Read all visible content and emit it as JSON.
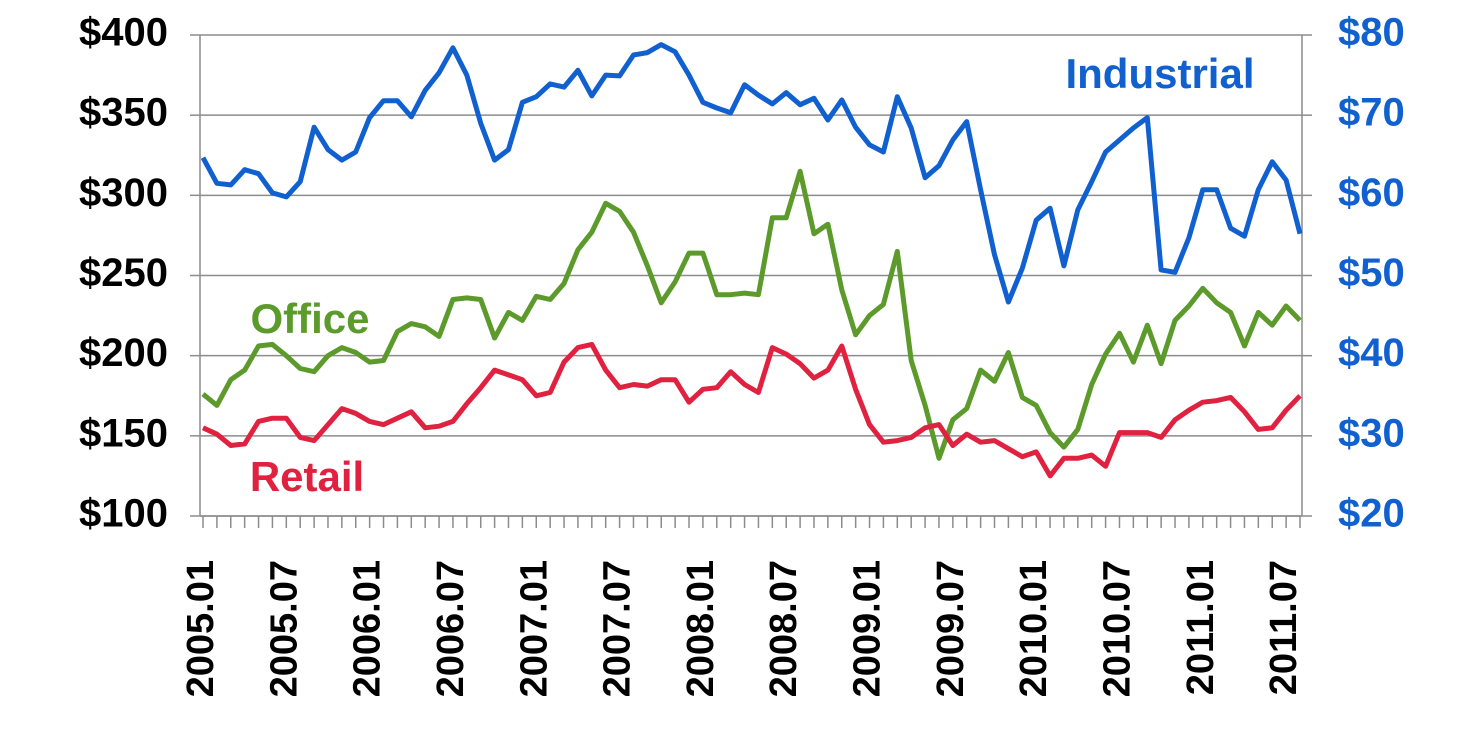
{
  "chart_data": {
    "type": "line",
    "categories": [
      "2005.01",
      null,
      null,
      null,
      null,
      null,
      "2005.07",
      null,
      null,
      null,
      null,
      null,
      "2006.01",
      null,
      null,
      null,
      null,
      null,
      "2006.07",
      null,
      null,
      null,
      null,
      null,
      "2007.01",
      null,
      null,
      null,
      null,
      null,
      "2007.07",
      null,
      null,
      null,
      null,
      null,
      "2008.01",
      null,
      null,
      null,
      null,
      null,
      "2008.07",
      null,
      null,
      null,
      null,
      null,
      "2009.01",
      null,
      null,
      null,
      null,
      null,
      "2009.07",
      null,
      null,
      null,
      null,
      null,
      "2010.01",
      null,
      null,
      null,
      null,
      null,
      "2010.07",
      null,
      null,
      null,
      null,
      null,
      "2011.01",
      null,
      null,
      null,
      null,
      null,
      "2011.07",
      null
    ],
    "series": [
      {
        "name": "Industrial",
        "color": "#1060d0",
        "axis": "y2",
        "values": [
          64.7,
          61.5,
          61.3,
          63.2,
          62.7,
          60.3,
          59.8,
          61.7,
          68.5,
          65.7,
          64.4,
          65.4,
          69.7,
          71.8,
          71.8,
          69.8,
          73.1,
          75.3,
          78.4,
          75.0,
          69.0,
          64.4,
          65.7,
          71.6,
          72.3,
          73.9,
          73.5,
          75.6,
          72.4,
          75.0,
          74.9,
          77.5,
          77.8,
          78.8,
          77.9,
          75.0,
          71.6,
          70.9,
          70.3,
          73.8,
          72.5,
          71.4,
          72.8,
          71.3,
          72.1,
          69.4,
          71.9,
          68.5,
          66.3,
          65.4,
          72.3,
          68.4,
          62.2,
          63.7,
          66.9,
          69.2,
          60.7,
          52.6,
          46.7,
          50.9,
          56.9,
          58.4,
          51.2,
          58.2,
          61.7,
          65.4,
          66.9,
          68.4,
          69.7,
          50.7,
          50.4,
          54.7,
          60.7,
          60.7,
          55.9,
          54.9,
          60.7,
          64.2,
          61.9,
          55.2
        ]
      },
      {
        "name": "Office",
        "color": "#5c9a2c",
        "values": [
          176,
          169,
          185,
          191,
          206,
          207,
          200,
          192,
          190,
          200,
          205,
          202,
          196,
          197,
          215,
          220,
          218,
          212,
          235,
          236,
          235,
          211,
          227,
          222,
          237,
          235,
          245,
          266,
          277,
          295,
          290,
          277,
          256,
          233,
          246,
          264,
          264,
          238,
          238,
          239,
          238,
          286,
          286,
          315,
          276,
          282,
          241,
          213,
          225,
          232,
          265,
          197,
          169,
          136,
          160,
          167,
          191,
          184,
          202,
          174,
          169,
          152,
          143,
          154,
          182,
          201,
          214,
          196,
          219,
          195,
          222,
          231,
          242,
          233,
          227,
          206,
          227,
          219,
          231,
          222
        ]
      },
      {
        "name": "Retail",
        "color": "#e0213f",
        "values": [
          155,
          151,
          144,
          145,
          159,
          161,
          161,
          149,
          147,
          157,
          167,
          164,
          159,
          157,
          161,
          165,
          155,
          156,
          159,
          170,
          180,
          191,
          188,
          185,
          175,
          177,
          196,
          205,
          207,
          191,
          180,
          182,
          181,
          185,
          185,
          171,
          179,
          180,
          190,
          182,
          177,
          205,
          201,
          195,
          186,
          191,
          206,
          179,
          157,
          146,
          147,
          149,
          155,
          157,
          144,
          151,
          146,
          147,
          142,
          137,
          140,
          125,
          136,
          136,
          138,
          131,
          152,
          152,
          152,
          149,
          160,
          166,
          171,
          172,
          174,
          165,
          154,
          155,
          166,
          175
        ]
      }
    ],
    "ylim": [
      100,
      400
    ],
    "yticks": [
      {
        "value": 100,
        "label": "$100"
      },
      {
        "value": 150,
        "label": "$150"
      },
      {
        "value": 200,
        "label": "$200"
      },
      {
        "value": 250,
        "label": "$250"
      },
      {
        "value": 300,
        "label": "$300"
      },
      {
        "value": 350,
        "label": "$350"
      },
      {
        "value": 400,
        "label": "$400"
      }
    ],
    "y2lim": [
      20,
      80
    ],
    "y2ticks": [
      {
        "value": 20,
        "label": "$20"
      },
      {
        "value": 30,
        "label": "$30"
      },
      {
        "value": 40,
        "label": "$40"
      },
      {
        "value": 50,
        "label": "$50"
      },
      {
        "value": 60,
        "label": "$60"
      },
      {
        "value": 70,
        "label": "$70"
      },
      {
        "value": 80,
        "label": "$80"
      }
    ],
    "grid": true
  }
}
